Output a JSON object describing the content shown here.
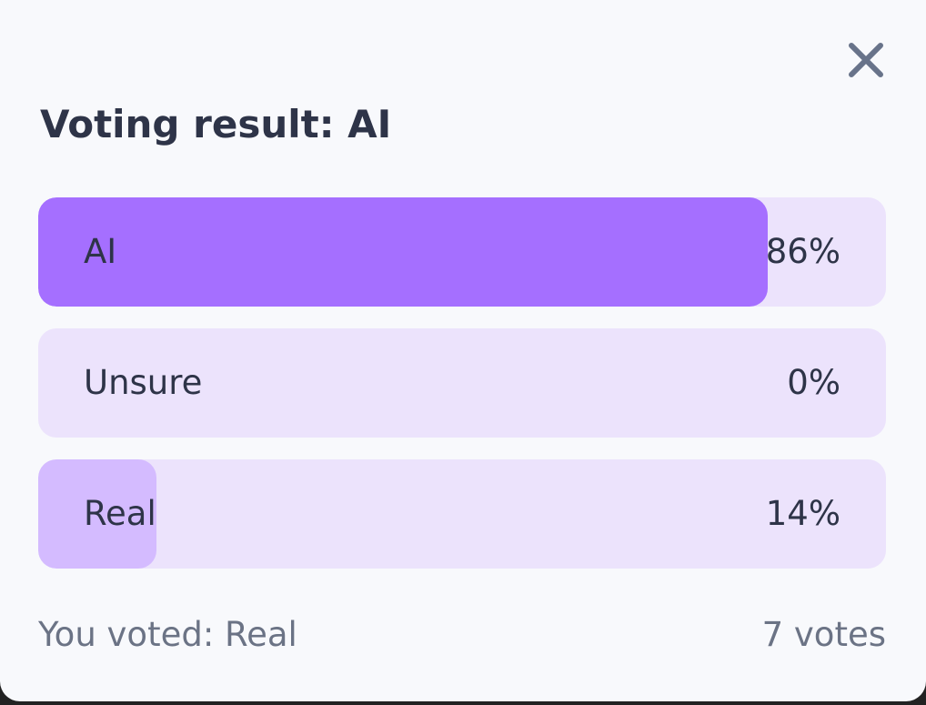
{
  "header": {
    "title": "Voting result: AI"
  },
  "poll": {
    "options": [
      {
        "label": "AI",
        "percent": 86,
        "percent_label": "86%",
        "color": "#a56fff"
      },
      {
        "label": "Unsure",
        "percent": 0,
        "percent_label": "0%",
        "color": "#d4bbff"
      },
      {
        "label": "Real",
        "percent": 14,
        "percent_label": "14%",
        "color": "#d4bbff"
      }
    ],
    "scale": [
      0,
      100
    ],
    "track_color": "#ece3fc"
  },
  "footer": {
    "your_vote": "You voted: Real",
    "total": "7 votes"
  }
}
